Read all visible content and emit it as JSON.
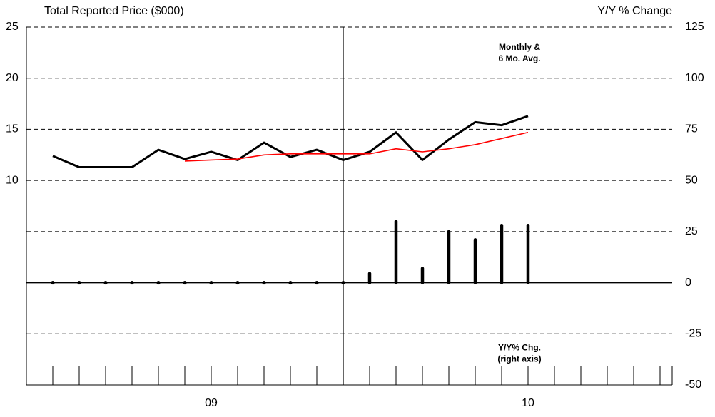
{
  "chart_data": {
    "type": "line",
    "y_label": "Total Reported Price ($000)",
    "y2_label": "Y/Y % Change",
    "categories": [
      null,
      null,
      null,
      null,
      null,
      null,
      "09",
      null,
      null,
      null,
      null,
      null,
      null,
      null,
      null,
      null,
      null,
      null,
      "10",
      null,
      null,
      null,
      null,
      null
    ],
    "ylim": [
      -10,
      25
    ],
    "yticks": [
      10,
      15,
      20,
      25
    ],
    "y2lim": [
      -50,
      125
    ],
    "y2ticks": [
      -50,
      -25,
      0,
      25,
      50,
      75,
      100,
      125
    ],
    "grid": true,
    "series": [
      {
        "type": "line",
        "color": "#000000",
        "values": [
          12.4,
          11.3,
          11.3,
          11.3,
          13.0,
          12.1,
          12.8,
          12.0,
          13.7,
          12.3,
          13.0,
          12.0,
          12.8,
          14.7,
          12.0,
          14.0,
          15.7,
          15.4,
          16.3,
          null,
          null,
          null,
          null,
          null
        ]
      },
      {
        "type": "line",
        "color": "#ff0000",
        "values": [
          null,
          null,
          null,
          null,
          null,
          11.9,
          12.0,
          12.1,
          12.5,
          12.6,
          12.6,
          12.6,
          12.6,
          13.1,
          12.8,
          13.1,
          13.5,
          14.1,
          14.7,
          null,
          null,
          null,
          null,
          null
        ]
      },
      {
        "type": "bar",
        "axis": "y2",
        "color": "#000000",
        "values": [
          0,
          0,
          0,
          0,
          0,
          0,
          0,
          0,
          0,
          0,
          0,
          0,
          4.5,
          30,
          7,
          25,
          21,
          28,
          28,
          null,
          null,
          null,
          null,
          null
        ]
      }
    ],
    "annotations": [
      [
        "Monthly &",
        "6 Mo. Avg."
      ],
      [
        "Y/Y% Chg.",
        "(right axis)"
      ]
    ]
  }
}
